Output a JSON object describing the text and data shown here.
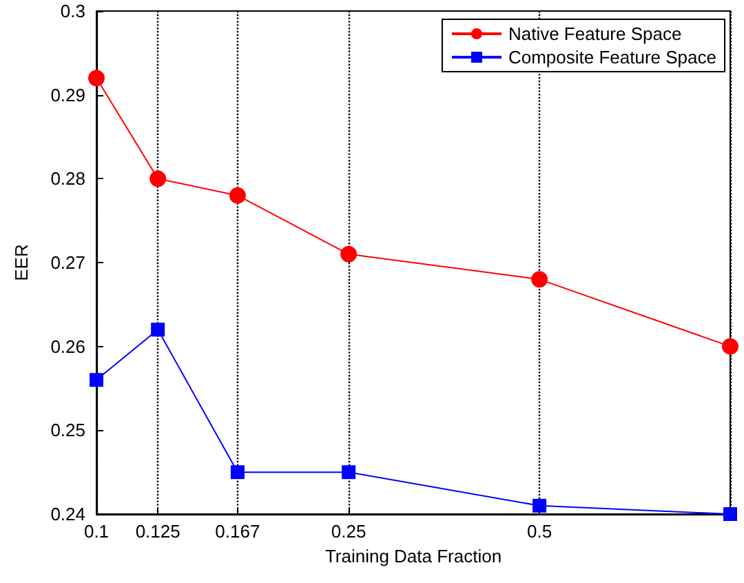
{
  "chart_data": {
    "type": "line",
    "xlabel": "Training Data Fraction",
    "ylabel": "EER",
    "log": "x",
    "x": [
      0.1,
      0.125,
      0.167,
      0.25,
      0.5,
      1
    ],
    "xlim": [
      0.1,
      1
    ],
    "xticks": [
      0.1,
      0.125,
      0.167,
      0.25,
      0.5,
      {
        "value": 1,
        "label": null
      }
    ],
    "ylim": [
      0.24,
      0.3
    ],
    "yticks": [
      0.24,
      0.25,
      0.26,
      0.27,
      0.28,
      0.29,
      0.3
    ],
    "grid": "x",
    "legend": "top right",
    "line_style": "solid",
    "series": [
      {
        "name": "Native Feature Space",
        "color": "#ff0000",
        "marker": "circle",
        "values": [
          0.292,
          0.28,
          0.278,
          0.271,
          0.268,
          0.26
        ]
      },
      {
        "name": "Composite Feature Space",
        "color": "#0000ff",
        "marker": "square",
        "values": [
          0.256,
          0.262,
          0.245,
          0.245,
          0.241,
          0.24
        ]
      }
    ]
  }
}
